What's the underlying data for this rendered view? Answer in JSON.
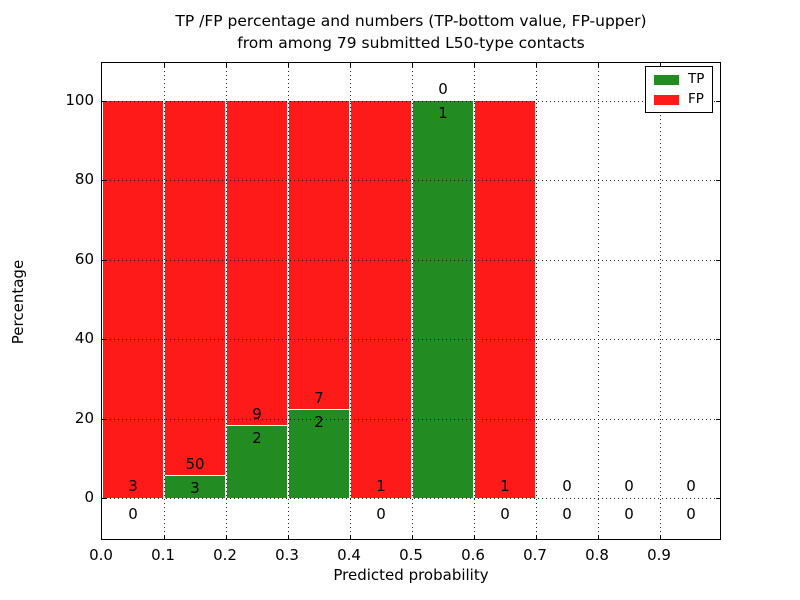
{
  "figure": {
    "title_line1": "TP /FP percentage and numbers (TP-bottom value, FP-upper)",
    "title_line2": "from among 79 submitted L50-type contacts"
  },
  "axes": {
    "xlabel": "Predicted probability",
    "ylabel": "Percentage",
    "xtick_labels": [
      "0.0",
      "0.1",
      "0.2",
      "0.3",
      "0.4",
      "0.5",
      "0.6",
      "0.7",
      "0.8",
      "0.9"
    ],
    "ytick_values": [
      0,
      20,
      40,
      60,
      80,
      100
    ],
    "xlim": [
      0.0,
      1.0
    ],
    "ylim_display": [
      -10.8,
      109.6
    ],
    "grid_style": "dotted"
  },
  "legend": {
    "position": "upper-right",
    "entries": [
      {
        "label": "TP",
        "color": "#228b22"
      },
      {
        "label": "FP",
        "color": "#ff1a1a"
      }
    ]
  },
  "chart_data": {
    "type": "bar",
    "stacked": true,
    "title": "TP /FP percentage and numbers (TP-bottom value, FP-upper) from among 79 submitted L50-type contacts",
    "xlabel": "Predicted probability",
    "ylabel": "Percentage",
    "total_contacts": 79,
    "bin_width": 0.1,
    "bin_starts": [
      0.0,
      0.1,
      0.2,
      0.3,
      0.4,
      0.5,
      0.6,
      0.7,
      0.8,
      0.9
    ],
    "categories": [
      "0.0-0.1",
      "0.1-0.2",
      "0.2-0.3",
      "0.3-0.4",
      "0.4-0.5",
      "0.5-0.6",
      "0.6-0.7",
      "0.7-0.8",
      "0.8-0.9",
      "0.9-1.0"
    ],
    "series": [
      {
        "name": "TP",
        "color": "#228b22",
        "counts": [
          0,
          3,
          2,
          2,
          0,
          1,
          0,
          0,
          0,
          0
        ],
        "percent": [
          0,
          5.66,
          18.18,
          22.22,
          0,
          100,
          0,
          0,
          0,
          0
        ]
      },
      {
        "name": "FP",
        "color": "#ff1a1a",
        "counts": [
          3,
          50,
          9,
          7,
          1,
          0,
          1,
          0,
          0,
          0
        ],
        "percent": [
          100,
          94.34,
          81.82,
          77.78,
          100,
          0,
          100,
          0,
          0,
          0
        ]
      }
    ],
    "ylim": [
      0,
      100
    ]
  }
}
